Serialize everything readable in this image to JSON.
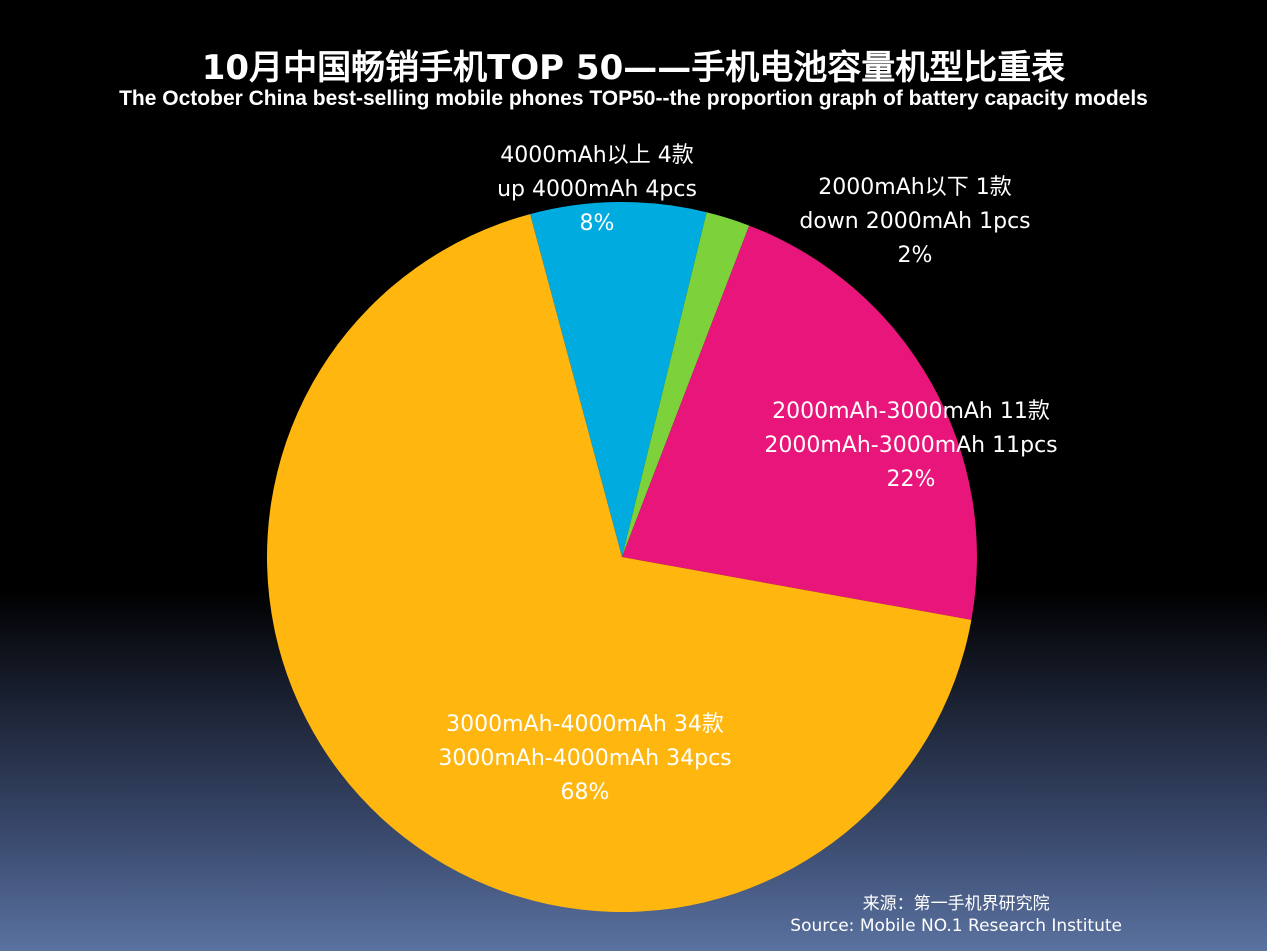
{
  "title": "10月中国畅销手机TOP 50——手机电池容量机型比重表",
  "subtitle": "The  October China best-selling mobile phones TOP50--the proportion graph of battery capacity models",
  "source": {
    "cn": "来源：第一手机界研究院",
    "en": "Source: Mobile NO.1 Research Institute"
  },
  "colors": {
    "background_top": "#000000",
    "background_bottom": "#5a72a0",
    "text": "#ffffff"
  },
  "chart_data": {
    "type": "pie",
    "title": "10月中国畅销手机TOP 50——手机电池容量机型比重表",
    "slices": [
      {
        "name_cn": "4000mAh以上",
        "name_en": "up 4000mAh",
        "count": 4,
        "percent": 8,
        "label_lines": [
          "4000mAh以上 4款",
          "up 4000mAh 4pcs",
          "8%"
        ],
        "color": "#00acdf"
      },
      {
        "name_cn": "2000mAh以下",
        "name_en": "down 2000mAh",
        "count": 1,
        "percent": 2,
        "label_lines": [
          "2000mAh以下 1款",
          "down 2000mAh 1pcs",
          "2%"
        ],
        "color": "#7dd23c"
      },
      {
        "name_cn": "2000mAh-3000mAh",
        "name_en": "2000mAh-3000mAh",
        "count": 11,
        "percent": 22,
        "label_lines": [
          "2000mAh-3000mAh 11款",
          "2000mAh-3000mAh 11pcs",
          "22%"
        ],
        "color": "#e8157a"
      },
      {
        "name_cn": "3000mAh-4000mAh",
        "name_en": "3000mAh-4000mAh",
        "count": 34,
        "percent": 68,
        "label_lines": [
          "3000mAh-4000mAh 34款",
          "3000mAh-4000mAh 34pcs",
          "68%"
        ],
        "color": "#ffb60f"
      }
    ]
  }
}
